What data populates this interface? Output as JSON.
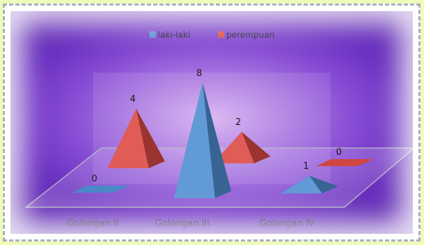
{
  "chart_data": {
    "type": "bar",
    "style": "3d-pyramid",
    "categories": [
      "Golongan II",
      "Golongan III",
      "Golongan IV"
    ],
    "series": [
      {
        "name": "laki-laki",
        "values": [
          0,
          8,
          1
        ],
        "color": "#4f8fd1"
      },
      {
        "name": "perempuan",
        "values": [
          4,
          2,
          0
        ],
        "color": "#dc4a44"
      }
    ],
    "legend_position": "top",
    "grid": false
  },
  "colors": {
    "background": "#eefcb8",
    "chart_center": "#d7b3f2",
    "chart_edge": "#5a22b0"
  }
}
